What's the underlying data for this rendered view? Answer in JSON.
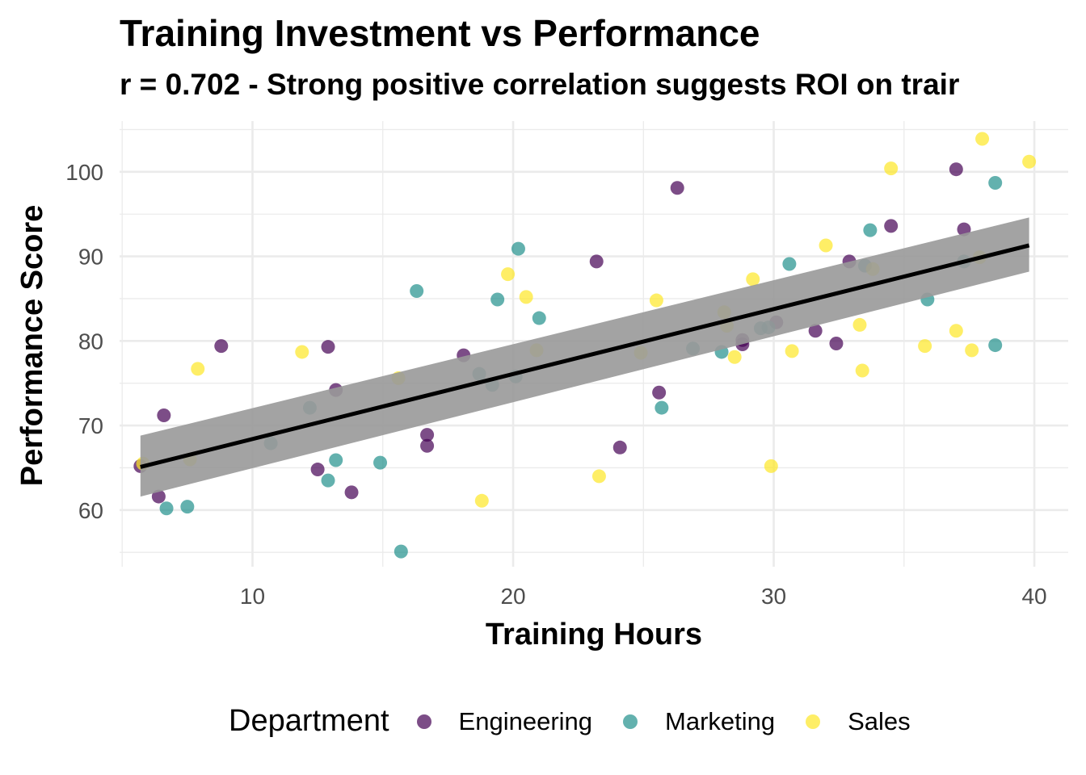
{
  "chart_data": {
    "type": "scatter",
    "title": "Training Investment vs Performance",
    "subtitle": "r = 0.702 - Strong positive correlation suggests ROI on trair",
    "xlabel": "Training Hours",
    "ylabel": "Performance Score",
    "xlim": [
      4.9,
      41.3
    ],
    "ylim": [
      53.3,
      106
    ],
    "x_ticks": [
      10,
      20,
      30,
      40
    ],
    "y_ticks": [
      60,
      70,
      80,
      90,
      100
    ],
    "grid": true,
    "legend": {
      "title": "Department",
      "position": "bottom"
    },
    "trend": {
      "x": [
        5.7,
        39.8
      ],
      "y": [
        65.1,
        91.3
      ],
      "band_upper": [
        68.8,
        94.6
      ],
      "band_lower": [
        61.6,
        88.2
      ]
    },
    "series": [
      {
        "name": "Engineering",
        "color": "#440154",
        "points": [
          [
            5.7,
            65.2
          ],
          [
            6.4,
            61.6
          ],
          [
            6.6,
            71.2
          ],
          [
            8.8,
            79.4
          ],
          [
            12.5,
            64.8
          ],
          [
            12.9,
            79.3
          ],
          [
            13.2,
            74.2
          ],
          [
            13.8,
            62.1
          ],
          [
            16.7,
            68.9
          ],
          [
            16.7,
            67.6
          ],
          [
            18.1,
            78.3
          ],
          [
            23.2,
            89.4
          ],
          [
            24.1,
            67.4
          ],
          [
            25.6,
            73.9
          ],
          [
            26.3,
            98.1
          ],
          [
            28.8,
            80.1
          ],
          [
            28.8,
            79.6
          ],
          [
            30.1,
            82.2
          ],
          [
            31.6,
            81.2
          ],
          [
            32.4,
            79.7
          ],
          [
            32.9,
            89.4
          ],
          [
            34.5,
            93.6
          ],
          [
            37.0,
            100.3
          ],
          [
            37.3,
            93.2
          ]
        ]
      },
      {
        "name": "Marketing",
        "color": "#21908C",
        "points": [
          [
            6.7,
            60.2
          ],
          [
            7.5,
            60.4
          ],
          [
            10.7,
            67.9
          ],
          [
            12.2,
            72.1
          ],
          [
            12.9,
            63.5
          ],
          [
            13.2,
            65.9
          ],
          [
            14.9,
            65.6
          ],
          [
            15.7,
            55.1
          ],
          [
            16.3,
            85.9
          ],
          [
            18.7,
            76.1
          ],
          [
            19.2,
            74.8
          ],
          [
            19.4,
            84.9
          ],
          [
            20.1,
            75.8
          ],
          [
            20.2,
            90.9
          ],
          [
            21.0,
            82.7
          ],
          [
            26.9,
            79.1
          ],
          [
            25.7,
            72.1
          ],
          [
            28.0,
            78.7
          ],
          [
            29.5,
            81.5
          ],
          [
            29.8,
            81.6
          ],
          [
            30.6,
            89.1
          ],
          [
            33.5,
            88.9
          ],
          [
            33.7,
            93.1
          ],
          [
            35.9,
            84.9
          ],
          [
            37.3,
            89.4
          ],
          [
            38.5,
            98.7
          ],
          [
            38.5,
            79.5
          ]
        ]
      },
      {
        "name": "Sales",
        "color": "#FDE725",
        "points": [
          [
            5.8,
            65.5
          ],
          [
            7.6,
            66.0
          ],
          [
            7.9,
            76.7
          ],
          [
            11.9,
            78.7
          ],
          [
            15.6,
            75.6
          ],
          [
            18.8,
            61.1
          ],
          [
            19.8,
            87.9
          ],
          [
            20.5,
            85.2
          ],
          [
            20.9,
            78.9
          ],
          [
            23.3,
            64.0
          ],
          [
            24.9,
            78.6
          ],
          [
            25.5,
            84.8
          ],
          [
            28.1,
            83.4
          ],
          [
            28.5,
            78.1
          ],
          [
            28.2,
            81.8
          ],
          [
            29.2,
            87.3
          ],
          [
            29.9,
            65.2
          ],
          [
            30.7,
            78.8
          ],
          [
            32.0,
            91.3
          ],
          [
            33.3,
            81.9
          ],
          [
            33.4,
            76.5
          ],
          [
            33.8,
            88.5
          ],
          [
            34.5,
            100.4
          ],
          [
            35.8,
            79.4
          ],
          [
            37.0,
            81.2
          ],
          [
            37.6,
            78.9
          ],
          [
            37.9,
            89.9
          ],
          [
            38.0,
            103.9
          ],
          [
            39.8,
            101.2
          ]
        ]
      }
    ]
  }
}
